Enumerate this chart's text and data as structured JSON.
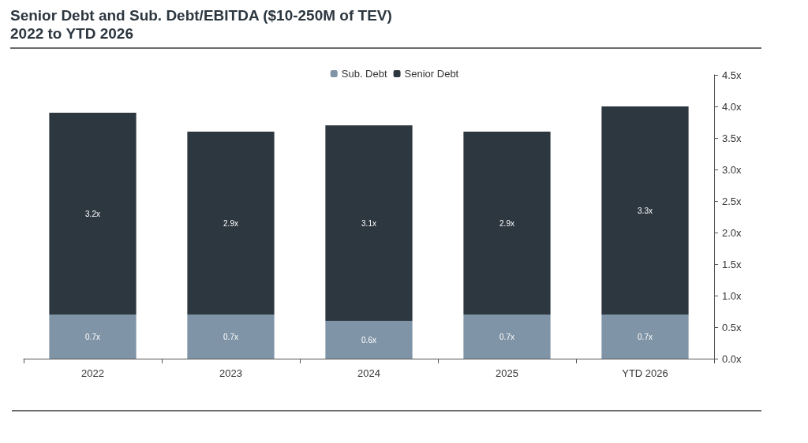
{
  "chart_data": {
    "type": "bar",
    "title": "Senior Debt and Sub. Debt/EBITDA ($10-250M of TEV)",
    "subtitle": "2022 to YTD 2026",
    "categories": [
      "2022",
      "2023",
      "2024",
      "2025",
      "YTD 2026"
    ],
    "stacked": true,
    "series": [
      {
        "name": "Sub. Debt",
        "color": "#7f94a6",
        "values": [
          0.7,
          0.7,
          0.6,
          0.7,
          0.7
        ],
        "value_labels": [
          "0.7x",
          "0.7x",
          "0.6x",
          "0.7x",
          "0.7x"
        ]
      },
      {
        "name": "Senior Debt",
        "color": "#2d3740",
        "values": [
          3.2,
          2.9,
          3.1,
          2.9,
          3.3
        ],
        "value_labels": [
          "3.2x",
          "2.9x",
          "3.1x",
          "2.9x",
          "3.3x"
        ]
      }
    ],
    "ylim": [
      0,
      4.5
    ],
    "yticks": [
      {
        "value": 0,
        "label": "0.0x"
      },
      {
        "value": 0.5,
        "label": "0.5x"
      },
      {
        "value": 1,
        "label": "1.0x"
      },
      {
        "value": 1.5,
        "label": "1.5x"
      },
      {
        "value": 2,
        "label": "2.0x"
      },
      {
        "value": 2.5,
        "label": "2.5x"
      },
      {
        "value": 3,
        "label": "3.0x"
      },
      {
        "value": 3.5,
        "label": "3.5x"
      },
      {
        "value": 4,
        "label": "4.0x"
      },
      {
        "value": 4.5,
        "label": "4.5x"
      }
    ],
    "legend": "top",
    "grid": false
  }
}
